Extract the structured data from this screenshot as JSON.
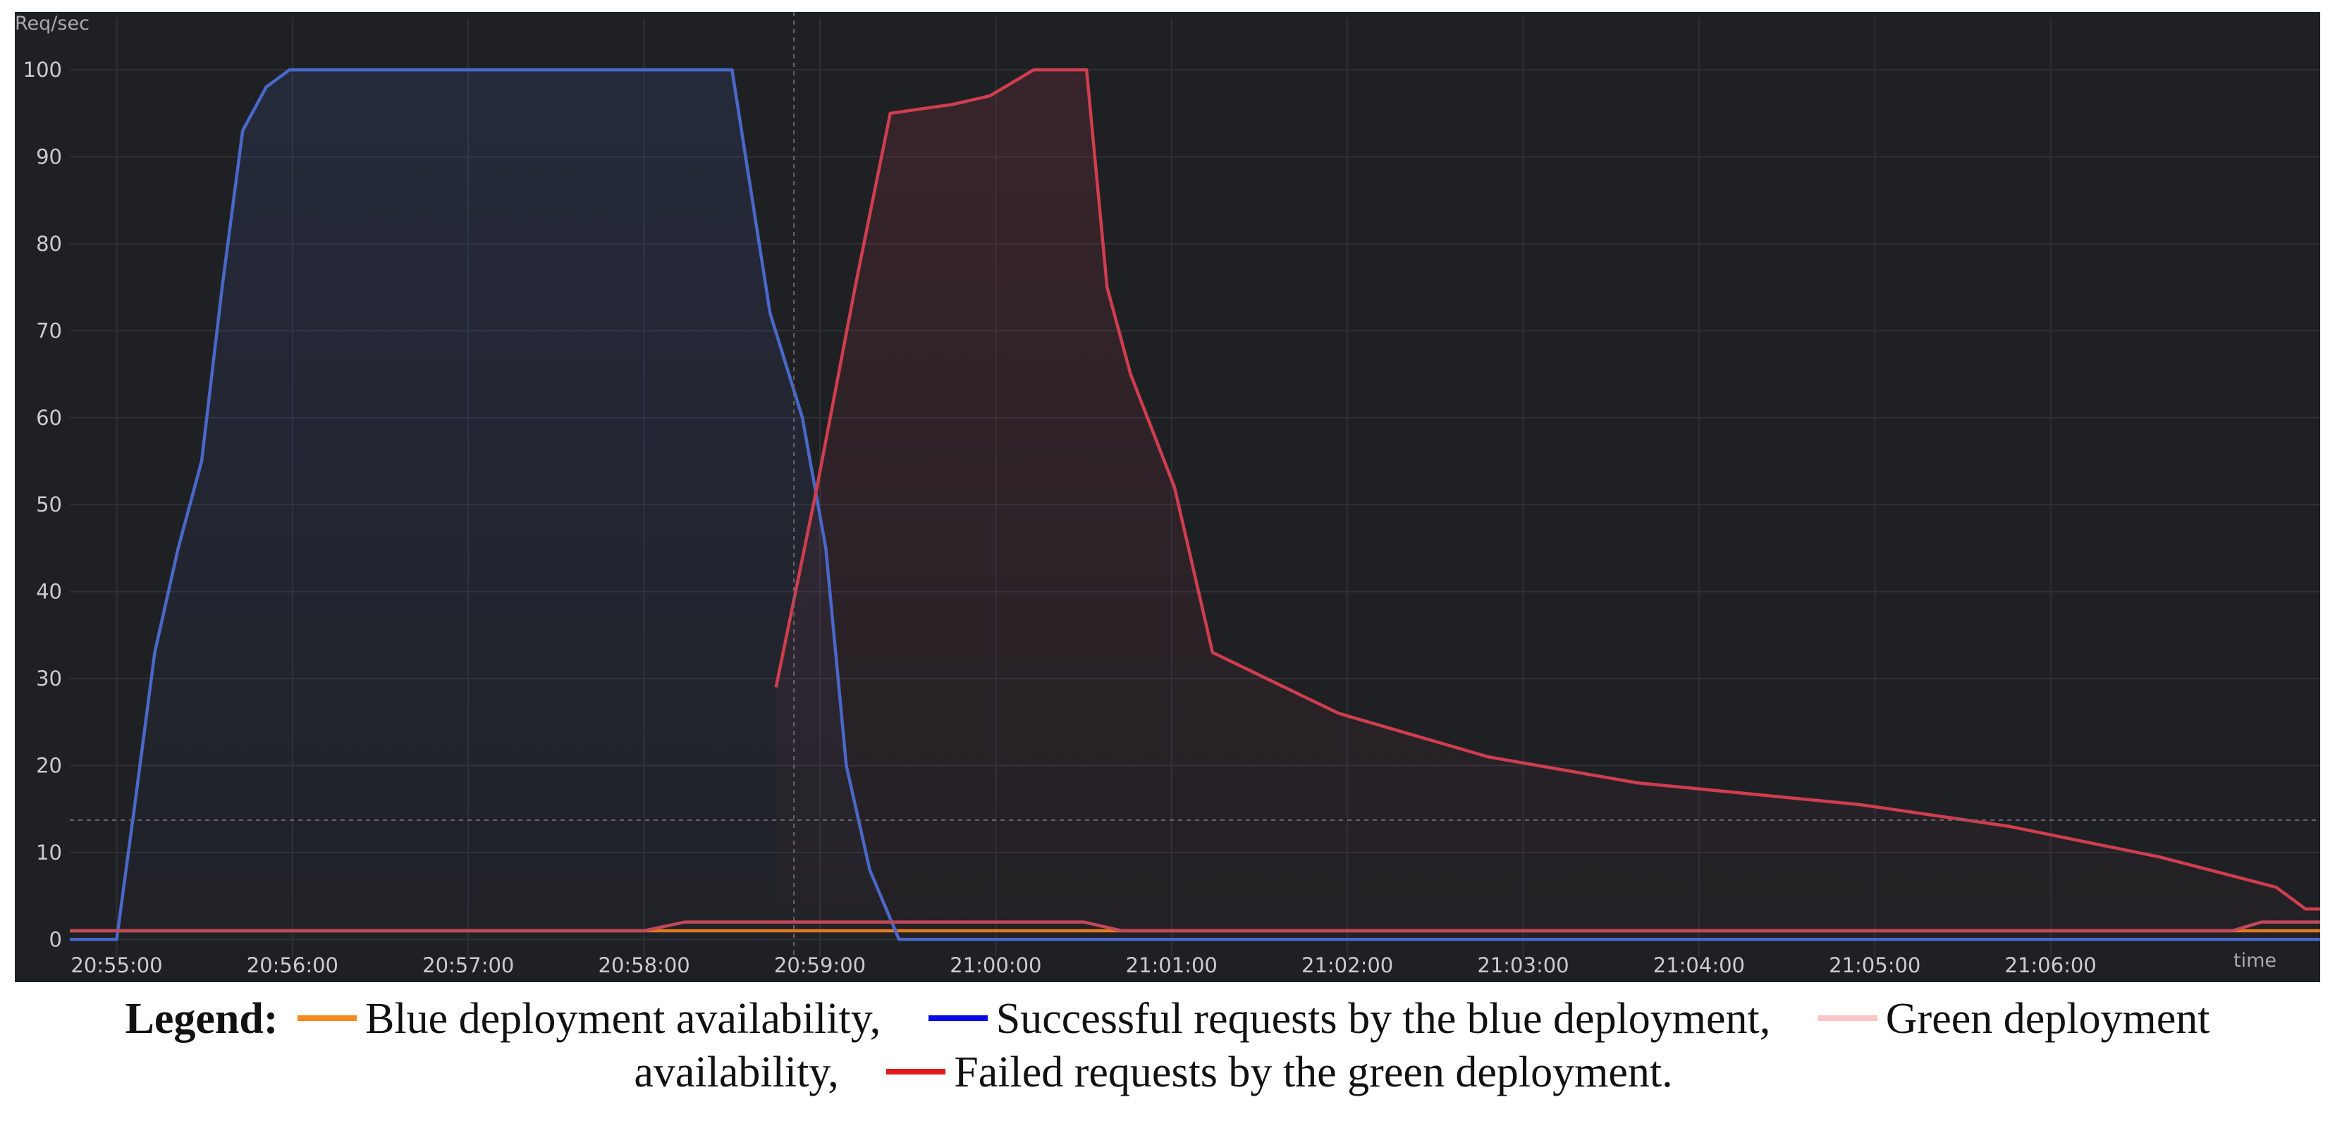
{
  "chart_data": {
    "type": "line",
    "y_label": "Req/sec",
    "x_label": "time",
    "xlim": [
      "20:54:44",
      "21:07:32"
    ],
    "xticks": [
      "20:55:00",
      "20:56:00",
      "20:57:00",
      "20:58:00",
      "20:59:00",
      "21:00:00",
      "21:01:00",
      "21:02:00",
      "21:03:00",
      "21:04:00",
      "21:05:00",
      "21:06:00"
    ],
    "ylim": [
      -2,
      106
    ],
    "yticks": [
      0,
      10,
      20,
      30,
      40,
      50,
      60,
      70,
      80,
      90,
      100
    ],
    "grid": true,
    "legend_title": "Legend:",
    "series": [
      {
        "name": "Blue deployment availability,",
        "color": "#e07a1f",
        "legend_color": "#f5891e",
        "fill": false,
        "x": [
          "20:54:44",
          "21:07:32"
        ],
        "values": [
          1,
          1
        ]
      },
      {
        "name": "Successful requests by the blue deployment,",
        "color": "#4a68c8",
        "legend_color": "#0a0ae6",
        "fill": true,
        "x": [
          "20:54:44",
          "20:55:00",
          "20:55:06",
          "20:55:13",
          "20:55:21",
          "20:55:29",
          "20:55:36",
          "20:55:43",
          "20:55:51",
          "20:55:59",
          "20:56:27",
          "20:58:00",
          "20:58:30",
          "20:58:43",
          "20:58:54",
          "20:59:02",
          "20:59:09",
          "20:59:17",
          "20:59:27",
          "21:07:32"
        ],
        "values": [
          0,
          0,
          15,
          33,
          45,
          55,
          75,
          93,
          98,
          100,
          100,
          100,
          100,
          72,
          60,
          45,
          20,
          8,
          0,
          0
        ]
      },
      {
        "name": "Green deployment availability,",
        "color": "#c0495a",
        "legend_color": "#ffc4c4",
        "fill": false,
        "x": [
          "20:54:44",
          "20:58:00",
          "20:58:14",
          "21:00:30",
          "21:00:43",
          "21:07:02",
          "21:07:12",
          "21:07:32"
        ],
        "values": [
          1,
          1,
          2,
          2,
          1,
          1,
          2,
          2
        ]
      },
      {
        "name": "Failed requests by the green deployment.",
        "color": "#cf3e4f",
        "legend_color": "#e01a1a",
        "fill": true,
        "x": [
          "20:58:45",
          "20:58:59",
          "20:59:12",
          "20:59:24",
          "20:59:45",
          "20:59:58",
          "21:00:13",
          "21:00:31",
          "21:00:38",
          "21:00:46",
          "21:01:01",
          "21:01:14",
          "21:01:57",
          "21:02:48",
          "21:03:39",
          "21:04:55",
          "21:05:46",
          "21:06:37",
          "21:07:17",
          "21:07:27",
          "21:07:32"
        ],
        "values": [
          29,
          52,
          75,
          95,
          96,
          97,
          100,
          100,
          75,
          65,
          52,
          33,
          26,
          21,
          18,
          15.5,
          13,
          9.5,
          6,
          3.5,
          3.5
        ]
      }
    ]
  }
}
